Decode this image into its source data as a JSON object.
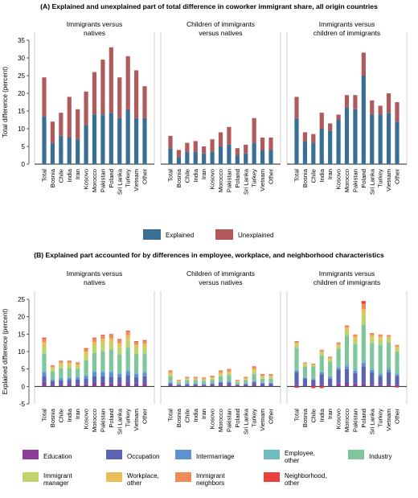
{
  "palette": {
    "explained": "#3a6f95",
    "unexplained": "#b05a5c",
    "education": "#8e3e99",
    "occupation": "#5c63b3",
    "intermarriage": "#5d92cf",
    "employee_other": "#6fbcbf",
    "industry": "#7fc79a",
    "immigrant_manager": "#bfd36a",
    "workplace_other": "#e9bd58",
    "immigrant_neighbors": "#ef8c57",
    "neighborhood_other": "#e8423b"
  },
  "chart_data": [
    {
      "type": "bar",
      "stacked": true,
      "title": "(A) Explained and unexplained part of total difference in coworker immigrant share, all origin countries",
      "ylabel": "Total difference (percent)",
      "ylim": [
        0,
        35
      ],
      "yticks": [
        0,
        5,
        10,
        15,
        20,
        25,
        30,
        35
      ],
      "grid": false,
      "legend": "bottom",
      "series_names": [
        "Explained",
        "Unexplained"
      ],
      "series_keys": [
        "explained",
        "unexplained"
      ],
      "panels": [
        {
          "title_lines": [
            "Immigrants versus",
            "natives"
          ],
          "categories": [
            "Total",
            "Bosnia",
            "Chile",
            "India",
            "Iran",
            "Kosovo",
            "Morocco",
            "Pakistan",
            "Poland",
            "Sri Lanka",
            "Turkey",
            "Vietnam",
            "Other"
          ],
          "series": [
            {
              "name": "Explained",
              "values": [
                13.5,
                6,
                8,
                7.5,
                7,
                11,
                14,
                14,
                14.5,
                13,
                15.5,
                13,
                13
              ]
            },
            {
              "name": "Unexplained",
              "values": [
                11,
                6,
                6.5,
                11.5,
                8.5,
                9.5,
                12,
                15.5,
                18.5,
                11.5,
                15,
                13.5,
                9
              ]
            }
          ]
        },
        {
          "title_lines": [
            "Children of immigrants",
            "versus natives"
          ],
          "categories": [
            "Total",
            "Bosnia",
            "Chile",
            "India",
            "Iran",
            "Kosovo",
            "Morocco",
            "Pakistan",
            "Poland",
            "Sri Lanka",
            "Turkey",
            "Vietnam",
            "Other"
          ],
          "series": [
            {
              "name": "Explained",
              "values": [
                4.5,
                2,
                3.5,
                3.5,
                3,
                3.5,
                5,
                5.5,
                2.5,
                3,
                6,
                4,
                4
              ]
            },
            {
              "name": "Unexplained",
              "values": [
                3.5,
                2,
                2.5,
                3,
                2,
                3.5,
                4,
                5,
                2,
                2.5,
                7,
                3.5,
                3.5
              ]
            }
          ]
        },
        {
          "title_lines": [
            "Immigrants versus",
            "children of immigrants"
          ],
          "categories": [
            "Total",
            "Bosnia",
            "Chile",
            "India",
            "Iran",
            "Kosovo",
            "Morocco",
            "Pakistan",
            "Poland",
            "Sri Lanka",
            "Turkey",
            "Vietnam",
            "Other"
          ],
          "series": [
            {
              "name": "Explained",
              "values": [
                13,
                6.5,
                6,
                10,
                9.5,
                12.5,
                16,
                15.5,
                25,
                14,
                14,
                14.5,
                12
              ]
            },
            {
              "name": "Unexplained",
              "values": [
                6,
                2.5,
                2.5,
                4.5,
                2,
                1.5,
                3.5,
                4,
                6.5,
                4,
                2.5,
                5.5,
                5.5
              ]
            }
          ]
        }
      ]
    },
    {
      "type": "bar",
      "stacked": true,
      "title": "(B) Explained part accounted for by differences in employee, workplace, and neighborhood characteristics",
      "ylabel": "Explained difference (percent)",
      "ylim": [
        -5,
        25
      ],
      "yticks": [
        -5,
        0,
        5,
        10,
        15,
        20,
        25
      ],
      "grid": false,
      "legend": "bottom",
      "series_names": [
        "Education",
        "Occupation",
        "Intermarriage",
        "Employee, other",
        "Industry",
        "Immigrant manager",
        "Workplace, other",
        "Immigrant neighbors",
        "Neighborhood, other"
      ],
      "series_keys": [
        "education",
        "occupation",
        "intermarriage",
        "employee_other",
        "industry",
        "immigrant_manager",
        "workplace_other",
        "immigrant_neighbors",
        "neighborhood_other"
      ],
      "panels": [
        {
          "title_lines": [
            "Immigrants versus",
            "natives"
          ],
          "categories": [
            "Total",
            "Bosnia",
            "Chile",
            "India",
            "Iran",
            "Kosovo",
            "Morocco",
            "Pakistan",
            "Poland",
            "Sri Lanka",
            "Turkey",
            "Vietnam",
            "Other"
          ],
          "series": [
            {
              "name": "Education",
              "values": [
                1,
                0.5,
                0.5,
                0.6,
                0.7,
                0.7,
                1,
                1,
                0.8,
                0.8,
                1,
                0.8,
                0.9
              ]
            },
            {
              "name": "Occupation",
              "values": [
                2,
                1,
                1.2,
                1.2,
                1.3,
                1.5,
                2,
                2,
                2,
                1.8,
                2.2,
                1.8,
                2
              ]
            },
            {
              "name": "Intermarriage",
              "values": [
                1,
                0.5,
                0.6,
                0.6,
                0.6,
                0.8,
                1,
                1,
                1.2,
                1,
                1.2,
                1,
                1
              ]
            },
            {
              "name": "Employee, other",
              "values": [
                0.5,
                0.3,
                0.4,
                0.4,
                0.4,
                0.5,
                0.6,
                0.6,
                0.6,
                0.6,
                0.7,
                0.6,
                0.6
              ]
            },
            {
              "name": "Industry",
              "values": [
                5,
                2,
                2.5,
                2.4,
                2,
                4,
                5,
                5.5,
                6,
                5,
                6,
                5,
                5
              ]
            },
            {
              "name": "Immigrant manager",
              "values": [
                2,
                0.8,
                1,
                1,
                0.9,
                1.5,
                2,
                2.2,
                2,
                2,
                2.3,
                1.8,
                1.8
              ]
            },
            {
              "name": "Workplace, other",
              "values": [
                1.2,
                0.5,
                0.6,
                0.6,
                0.5,
                1,
                1.2,
                1.3,
                1.2,
                1.2,
                1.3,
                1,
                1
              ]
            },
            {
              "name": "Immigrant neighbors",
              "values": [
                1,
                0.4,
                0.5,
                0.5,
                0.4,
                0.8,
                1,
                1,
                1,
                1,
                1.1,
                0.8,
                0.8
              ]
            },
            {
              "name": "Neighborhood, other",
              "values": [
                0.3,
                0.1,
                0.1,
                0.1,
                0.1,
                0.2,
                0.2,
                0.2,
                0.2,
                0.2,
                0.2,
                0.2,
                0.2
              ]
            }
          ]
        },
        {
          "title_lines": [
            "Children of immigrants",
            "versus natives"
          ],
          "categories": [
            "Total",
            "Bosnia",
            "Chile",
            "India",
            "Iran",
            "Kosovo",
            "Morocco",
            "Pakistan",
            "Poland",
            "Sri Lanka",
            "Turkey",
            "Vietnam",
            "Other"
          ],
          "series": [
            {
              "name": "Education",
              "values": [
                0.3,
                0.2,
                0.2,
                0.2,
                0.2,
                0.3,
                0.4,
                0.4,
                0.2,
                0.2,
                0.4,
                0.3,
                0.3
              ]
            },
            {
              "name": "Occupation",
              "values": [
                0.5,
                0.3,
                0.4,
                0.4,
                0.3,
                0.4,
                0.6,
                0.7,
                0.3,
                0.4,
                0.8,
                0.5,
                0.5
              ]
            },
            {
              "name": "Intermarriage",
              "values": [
                0.3,
                0.1,
                0.2,
                0.2,
                0.2,
                0.2,
                0.3,
                0.3,
                0.1,
                0.2,
                0.3,
                0.2,
                0.2
              ]
            },
            {
              "name": "Employee, other",
              "values": [
                0.3,
                0.1,
                0.2,
                0.2,
                0.2,
                0.2,
                0.3,
                0.3,
                0.1,
                0.2,
                0.3,
                0.2,
                0.2
              ]
            },
            {
              "name": "Industry",
              "values": [
                1.5,
                0.5,
                0.8,
                0.8,
                0.7,
                0.8,
                1.3,
                1.5,
                0.5,
                0.8,
                1.8,
                1,
                1
              ]
            },
            {
              "name": "Immigrant manager",
              "values": [
                0.6,
                0.2,
                0.3,
                0.3,
                0.3,
                0.4,
                0.6,
                0.6,
                0.2,
                0.3,
                0.8,
                0.5,
                0.5
              ]
            },
            {
              "name": "Workplace, other",
              "values": [
                0.5,
                0.2,
                0.3,
                0.3,
                0.3,
                0.3,
                0.5,
                0.5,
                0.2,
                0.3,
                0.6,
                0.4,
                0.4
              ]
            },
            {
              "name": "Immigrant neighbors",
              "values": [
                0.5,
                0.2,
                0.3,
                0.3,
                0.3,
                0.4,
                0.5,
                0.6,
                0.2,
                0.3,
                0.7,
                0.4,
                0.4
              ]
            },
            {
              "name": "Neighborhood, other",
              "values": [
                0.1,
                0.05,
                0.05,
                0.05,
                0.05,
                0.05,
                0.1,
                0.1,
                0.05,
                0.05,
                0.1,
                0.05,
                0.05
              ]
            }
          ]
        },
        {
          "title_lines": [
            "Immigrants versus",
            "children of immigrants"
          ],
          "categories": [
            "Total",
            "Bosnia",
            "Chile",
            "India",
            "Iran",
            "Kosovo",
            "Morocco",
            "Pakistan",
            "Poland",
            "Sri Lanka",
            "Turkey",
            "Vietnam",
            "Other"
          ],
          "negatives": [
            -0.4,
            0,
            -0.5,
            -0.5,
            0,
            0,
            0,
            0,
            0,
            0,
            0,
            0,
            -0.3
          ],
          "series": [
            {
              "name": "Education",
              "values": [
                0.5,
                0.2,
                0.3,
                0.5,
                0.2,
                0.8,
                1,
                0.8,
                0.8,
                0.5,
                0.5,
                0.5,
                0.5
              ]
            },
            {
              "name": "Occupation",
              "values": [
                3.5,
                2,
                1.5,
                3,
                2,
                4,
                4,
                3,
                5,
                3.5,
                2.5,
                3.5,
                2.5
              ]
            },
            {
              "name": "Intermarriage",
              "values": [
                0.5,
                0.3,
                0.3,
                0.5,
                0.5,
                0.5,
                0.8,
                0.7,
                1,
                0.7,
                0.5,
                0.8,
                0.5
              ]
            },
            {
              "name": "Employee, other",
              "values": [
                0.5,
                0.2,
                0.2,
                0.4,
                0.4,
                0.5,
                0.8,
                0.7,
                0.9,
                0.7,
                0.5,
                0.8,
                0.5
              ]
            },
            {
              "name": "Industry",
              "values": [
                6,
                3,
                3.5,
                4.5,
                4,
                5,
                8,
                7,
                10,
                7,
                8,
                7,
                6
              ]
            },
            {
              "name": "Immigrant manager",
              "values": [
                1,
                0.6,
                0.3,
                0.8,
                0.6,
                0.8,
                1.5,
                1.3,
                3,
                1.5,
                1.5,
                1.2,
                1
              ]
            },
            {
              "name": "Workplace, other",
              "values": [
                0.5,
                0.3,
                0.2,
                0.4,
                0.4,
                0.5,
                0.8,
                0.8,
                1.5,
                0.8,
                0.8,
                0.5,
                0.5
              ]
            },
            {
              "name": "Immigrant neighbors",
              "values": [
                0.4,
                0.2,
                0.2,
                0.3,
                0.3,
                0.4,
                0.5,
                0.5,
                1.5,
                0.5,
                0.5,
                0.3,
                0.3
              ]
            },
            {
              "name": "Neighborhood, other",
              "values": [
                0.1,
                0.05,
                0.05,
                0.1,
                0.1,
                0.1,
                0.1,
                0.1,
                0.8,
                0.1,
                0.1,
                0.1,
                0.1
              ]
            }
          ]
        }
      ]
    }
  ]
}
